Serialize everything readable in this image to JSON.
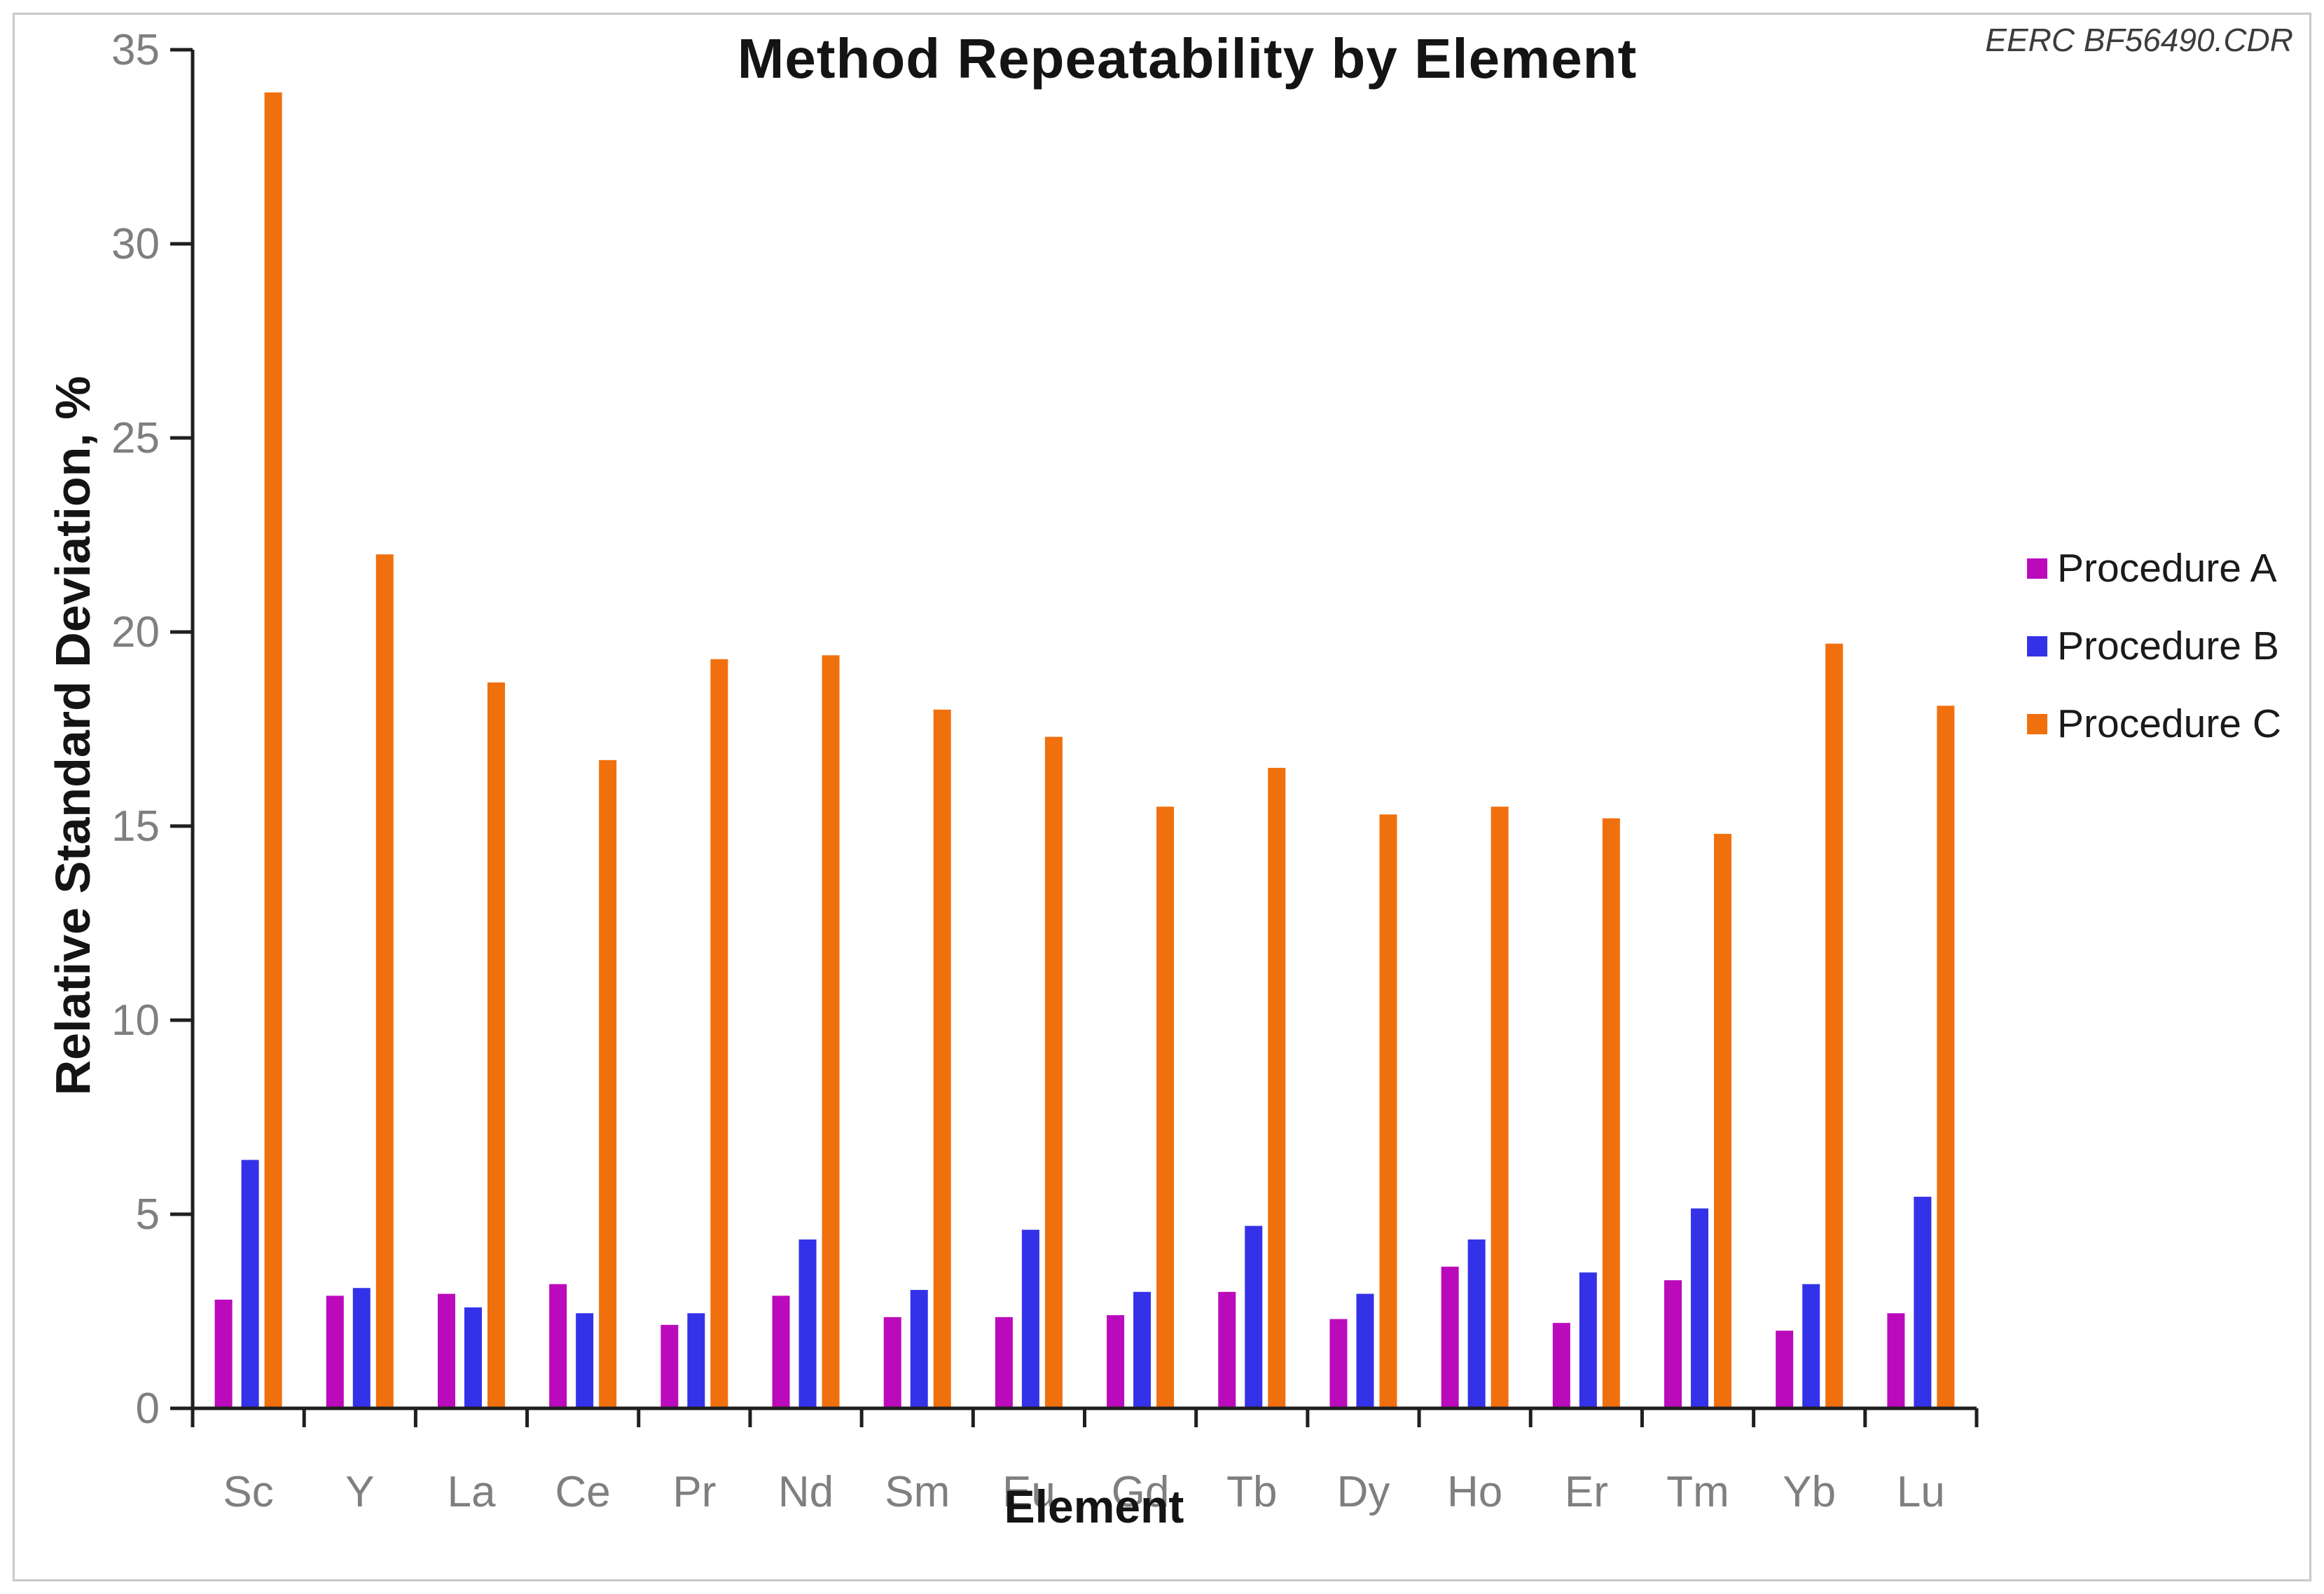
{
  "window": {
    "corner_text": "EERC BF56490.CDR"
  },
  "chart_data": {
    "type": "bar",
    "title": "Method Repeatability by Element",
    "xlabel": "Element",
    "ylabel": "Relative Standard Deviation, %",
    "ylim": [
      0,
      35
    ],
    "yticks": [
      0,
      5,
      10,
      15,
      20,
      25,
      30,
      35
    ],
    "grid": false,
    "legend_position": "right",
    "categories": [
      "Sc",
      "Y",
      "La",
      "Ce",
      "Pr",
      "Nd",
      "Sm",
      "Eu",
      "Gd",
      "Tb",
      "Dy",
      "Ho",
      "Er",
      "Tm",
      "Yb",
      "Lu"
    ],
    "series": [
      {
        "name": "Procedure A",
        "color": "#BB0ABB",
        "values": [
          2.8,
          2.9,
          2.95,
          3.2,
          2.15,
          2.9,
          2.35,
          2.35,
          2.4,
          3.0,
          2.3,
          3.65,
          2.2,
          3.3,
          2.0,
          2.45
        ]
      },
      {
        "name": "Procedure B",
        "color": "#3432E9",
        "values": [
          6.4,
          3.1,
          2.6,
          2.45,
          2.45,
          4.35,
          3.05,
          4.6,
          3.0,
          4.7,
          2.95,
          4.35,
          3.5,
          5.15,
          3.2,
          5.45
        ]
      },
      {
        "name": "Procedure C",
        "color": "#F0700E",
        "values": [
          33.9,
          22.0,
          18.7,
          16.7,
          19.3,
          19.4,
          18.0,
          17.3,
          15.5,
          16.5,
          15.3,
          15.5,
          15.2,
          14.8,
          19.7,
          18.1
        ]
      }
    ],
    "axis_color": "#1f1f1f",
    "tick_label_color": "#7f7f7f"
  }
}
